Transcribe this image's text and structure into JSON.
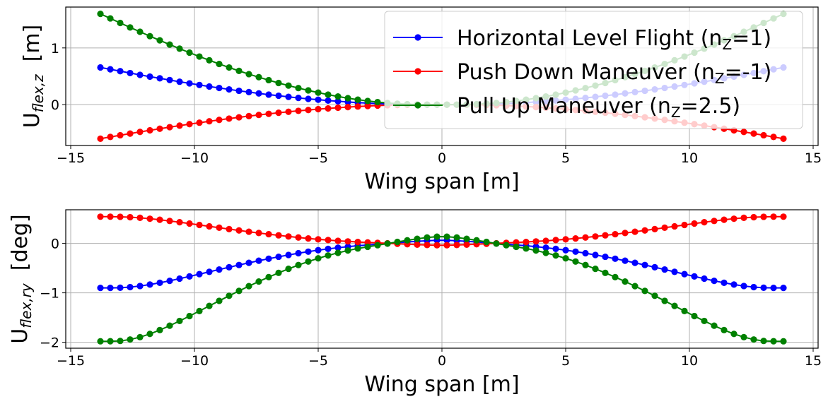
{
  "chart_data": [
    {
      "type": "line",
      "xlabel": "Wing span [m]",
      "ylabel": {
        "main": "U",
        "sub": "flex,z",
        "unit": "[m]"
      },
      "xlim": [
        -15.2,
        15.2
      ],
      "ylim": [
        -0.72,
        1.72
      ],
      "xticks": [
        -15,
        -10,
        -5,
        0,
        5,
        10,
        15
      ],
      "xtick_labels": [
        "−15",
        "−10",
        "−5",
        "0",
        "5",
        "10",
        "15"
      ],
      "yticks": [
        0,
        1
      ],
      "ytick_labels": [
        "0",
        "1"
      ],
      "grid": true,
      "legend": "upper-right",
      "x": [
        -13.8,
        -13.4,
        -13.0,
        -12.6,
        -12.2,
        -11.8,
        -11.4,
        -11.0,
        -10.6,
        -10.2,
        -9.8,
        -9.4,
        -9.0,
        -8.6,
        -8.2,
        -7.8,
        -7.4,
        -7.0,
        -6.6,
        -6.2,
        -5.8,
        -5.4,
        -5.0,
        -4.6,
        -4.2,
        -3.8,
        -3.4,
        -3.0,
        -2.6,
        -2.2,
        -1.8,
        -1.4,
        -1.0,
        -0.6,
        -0.2,
        0.2,
        0.6,
        1.0,
        1.4,
        1.8,
        2.2,
        2.6,
        3.0,
        3.4,
        3.8,
        4.2,
        4.6,
        5.0,
        5.4,
        5.8,
        6.2,
        6.6,
        7.0,
        7.4,
        7.8,
        8.2,
        8.6,
        9.0,
        9.4,
        9.8,
        10.2,
        10.6,
        11.0,
        11.4,
        11.8,
        12.2,
        12.6,
        13.0,
        13.4,
        13.8
      ],
      "series": [
        {
          "name": "Horizontal Level Flight (n",
          "name_sub": "Z",
          "name_tail": "=1)",
          "color": "#0000ff",
          "values": [
            0.656,
            0.623,
            0.59,
            0.557,
            0.525,
            0.494,
            0.464,
            0.434,
            0.404,
            0.375,
            0.347,
            0.32,
            0.294,
            0.269,
            0.244,
            0.221,
            0.198,
            0.177,
            0.157,
            0.137,
            0.119,
            0.102,
            0.087,
            0.072,
            0.059,
            0.047,
            0.036,
            0.027,
            0.019,
            0.012,
            0.007,
            0.004,
            0.001,
            0.0,
            0.0,
            0.0,
            0.0,
            0.001,
            0.004,
            0.007,
            0.012,
            0.019,
            0.027,
            0.036,
            0.047,
            0.059,
            0.072,
            0.087,
            0.102,
            0.119,
            0.137,
            0.157,
            0.177,
            0.198,
            0.221,
            0.244,
            0.269,
            0.294,
            0.32,
            0.347,
            0.375,
            0.404,
            0.434,
            0.464,
            0.494,
            0.525,
            0.557,
            0.59,
            0.623,
            0.656
          ]
        },
        {
          "name": "Push Down Maneuver (n",
          "name_sub": "Z",
          "name_tail": "=-1)",
          "color": "#ff0000",
          "values": [
            -0.6,
            -0.569,
            -0.539,
            -0.51,
            -0.48,
            -0.452,
            -0.424,
            -0.397,
            -0.37,
            -0.343,
            -0.318,
            -0.293,
            -0.269,
            -0.246,
            -0.223,
            -0.202,
            -0.181,
            -0.162,
            -0.143,
            -0.126,
            -0.109,
            -0.094,
            -0.079,
            -0.066,
            -0.054,
            -0.043,
            -0.033,
            -0.024,
            -0.017,
            -0.011,
            -0.007,
            -0.003,
            -0.001,
            0.0,
            0.0,
            0.0,
            0.0,
            -0.001,
            -0.003,
            -0.007,
            -0.011,
            -0.017,
            -0.024,
            -0.033,
            -0.043,
            -0.054,
            -0.066,
            -0.079,
            -0.094,
            -0.109,
            -0.126,
            -0.143,
            -0.162,
            -0.181,
            -0.202,
            -0.223,
            -0.246,
            -0.269,
            -0.293,
            -0.318,
            -0.343,
            -0.37,
            -0.397,
            -0.424,
            -0.452,
            -0.48,
            -0.51,
            -0.539,
            -0.569,
            -0.6
          ]
        },
        {
          "name": "Pull Up Maneuver (n",
          "name_sub": "Z",
          "name_tail": "=2.5)",
          "color": "#008000",
          "values": [
            1.6,
            1.52,
            1.44,
            1.361,
            1.284,
            1.207,
            1.133,
            1.059,
            0.987,
            0.917,
            0.848,
            0.782,
            0.717,
            0.655,
            0.595,
            0.538,
            0.484,
            0.432,
            0.382,
            0.336,
            0.292,
            0.251,
            0.212,
            0.176,
            0.144,
            0.114,
            0.088,
            0.065,
            0.045,
            0.029,
            0.017,
            0.008,
            0.003,
            0.0,
            0.0,
            0.0,
            0.0,
            0.003,
            0.008,
            0.017,
            0.029,
            0.045,
            0.065,
            0.088,
            0.114,
            0.144,
            0.176,
            0.212,
            0.251,
            0.292,
            0.336,
            0.382,
            0.432,
            0.484,
            0.538,
            0.595,
            0.655,
            0.717,
            0.782,
            0.848,
            0.917,
            0.987,
            1.059,
            1.133,
            1.207,
            1.284,
            1.361,
            1.44,
            1.52,
            1.6
          ]
        }
      ]
    },
    {
      "type": "line",
      "xlabel": "Wing span [m]",
      "ylabel": {
        "main": "U",
        "sub": "flex,ry",
        "unit": "[deg]"
      },
      "xlim": [
        -15.2,
        15.2
      ],
      "ylim": [
        -2.12,
        0.68
      ],
      "xticks": [
        -15,
        -10,
        -5,
        0,
        5,
        10,
        15
      ],
      "xtick_labels": [
        "−15",
        "−10",
        "−5",
        "0",
        "5",
        "10",
        "15"
      ],
      "yticks": [
        -2,
        -1,
        0
      ],
      "ytick_labels": [
        "−2",
        "−1",
        "0"
      ],
      "grid": true,
      "x": [
        -13.8,
        -13.4,
        -13.0,
        -12.6,
        -12.2,
        -11.8,
        -11.4,
        -11.0,
        -10.6,
        -10.2,
        -9.8,
        -9.4,
        -9.0,
        -8.6,
        -8.2,
        -7.8,
        -7.4,
        -7.0,
        -6.6,
        -6.2,
        -5.8,
        -5.4,
        -5.0,
        -4.6,
        -4.2,
        -3.8,
        -3.4,
        -3.0,
        -2.6,
        -2.2,
        -1.8,
        -1.4,
        -1.0,
        -0.6,
        -0.2,
        0.2,
        0.6,
        1.0,
        1.4,
        1.8,
        2.2,
        2.6,
        3.0,
        3.4,
        3.8,
        4.2,
        4.6,
        5.0,
        5.4,
        5.8,
        6.2,
        6.6,
        7.0,
        7.4,
        7.8,
        8.2,
        8.6,
        9.0,
        9.4,
        9.8,
        10.2,
        10.6,
        11.0,
        11.4,
        11.8,
        12.2,
        12.6,
        13.0,
        13.4,
        13.8
      ],
      "series": [
        {
          "name": "Horizontal Level Flight",
          "color": "#0000ff",
          "values": [
            -0.9,
            -0.9,
            -0.897,
            -0.884,
            -0.862,
            -0.832,
            -0.797,
            -0.757,
            -0.713,
            -0.668,
            -0.622,
            -0.575,
            -0.528,
            -0.482,
            -0.437,
            -0.393,
            -0.35,
            -0.31,
            -0.271,
            -0.234,
            -0.199,
            -0.167,
            -0.137,
            -0.111,
            -0.087,
            -0.066,
            -0.047,
            -0.032,
            -0.017,
            -0.002,
            0.013,
            0.028,
            0.042,
            0.054,
            0.062,
            0.062,
            0.054,
            0.042,
            0.028,
            0.013,
            -0.002,
            -0.017,
            -0.032,
            -0.047,
            -0.066,
            -0.087,
            -0.111,
            -0.137,
            -0.167,
            -0.199,
            -0.234,
            -0.271,
            -0.31,
            -0.35,
            -0.393,
            -0.437,
            -0.482,
            -0.528,
            -0.575,
            -0.622,
            -0.668,
            -0.713,
            -0.757,
            -0.797,
            -0.832,
            -0.862,
            -0.884,
            -0.897,
            -0.9,
            -0.9
          ]
        },
        {
          "name": "Push Down Maneuver",
          "color": "#ff0000",
          "values": [
            0.54,
            0.54,
            0.538,
            0.53,
            0.517,
            0.499,
            0.478,
            0.454,
            0.428,
            0.401,
            0.373,
            0.345,
            0.317,
            0.289,
            0.262,
            0.236,
            0.21,
            0.186,
            0.163,
            0.14,
            0.119,
            0.1,
            0.082,
            0.067,
            0.052,
            0.04,
            0.028,
            0.019,
            0.01,
            0.001,
            -0.008,
            -0.017,
            -0.025,
            -0.032,
            -0.037,
            -0.037,
            -0.032,
            -0.025,
            -0.017,
            -0.008,
            0.001,
            0.01,
            0.019,
            0.028,
            0.04,
            0.052,
            0.067,
            0.082,
            0.1,
            0.119,
            0.14,
            0.163,
            0.186,
            0.21,
            0.236,
            0.262,
            0.289,
            0.317,
            0.345,
            0.373,
            0.401,
            0.428,
            0.454,
            0.478,
            0.499,
            0.517,
            0.53,
            0.538,
            0.54,
            0.54
          ]
        },
        {
          "name": "Pull Up Maneuver",
          "color": "#008000",
          "values": [
            -1.98,
            -1.979,
            -1.973,
            -1.944,
            -1.896,
            -1.831,
            -1.753,
            -1.665,
            -1.569,
            -1.47,
            -1.368,
            -1.265,
            -1.162,
            -1.06,
            -0.961,
            -0.865,
            -0.771,
            -0.682,
            -0.596,
            -0.515,
            -0.438,
            -0.367,
            -0.302,
            -0.244,
            -0.191,
            -0.144,
            -0.103,
            -0.07,
            -0.037,
            -0.004,
            0.03,
            0.062,
            0.093,
            0.119,
            0.136,
            0.136,
            0.119,
            0.093,
            0.062,
            0.03,
            -0.004,
            -0.037,
            -0.07,
            -0.103,
            -0.144,
            -0.191,
            -0.244,
            -0.302,
            -0.367,
            -0.438,
            -0.515,
            -0.596,
            -0.682,
            -0.771,
            -0.865,
            -0.961,
            -1.06,
            -1.162,
            -1.265,
            -1.368,
            -1.47,
            -1.569,
            -1.665,
            -1.753,
            -1.831,
            -1.896,
            -1.944,
            -1.973,
            -1.979,
            -1.98
          ]
        }
      ]
    }
  ]
}
